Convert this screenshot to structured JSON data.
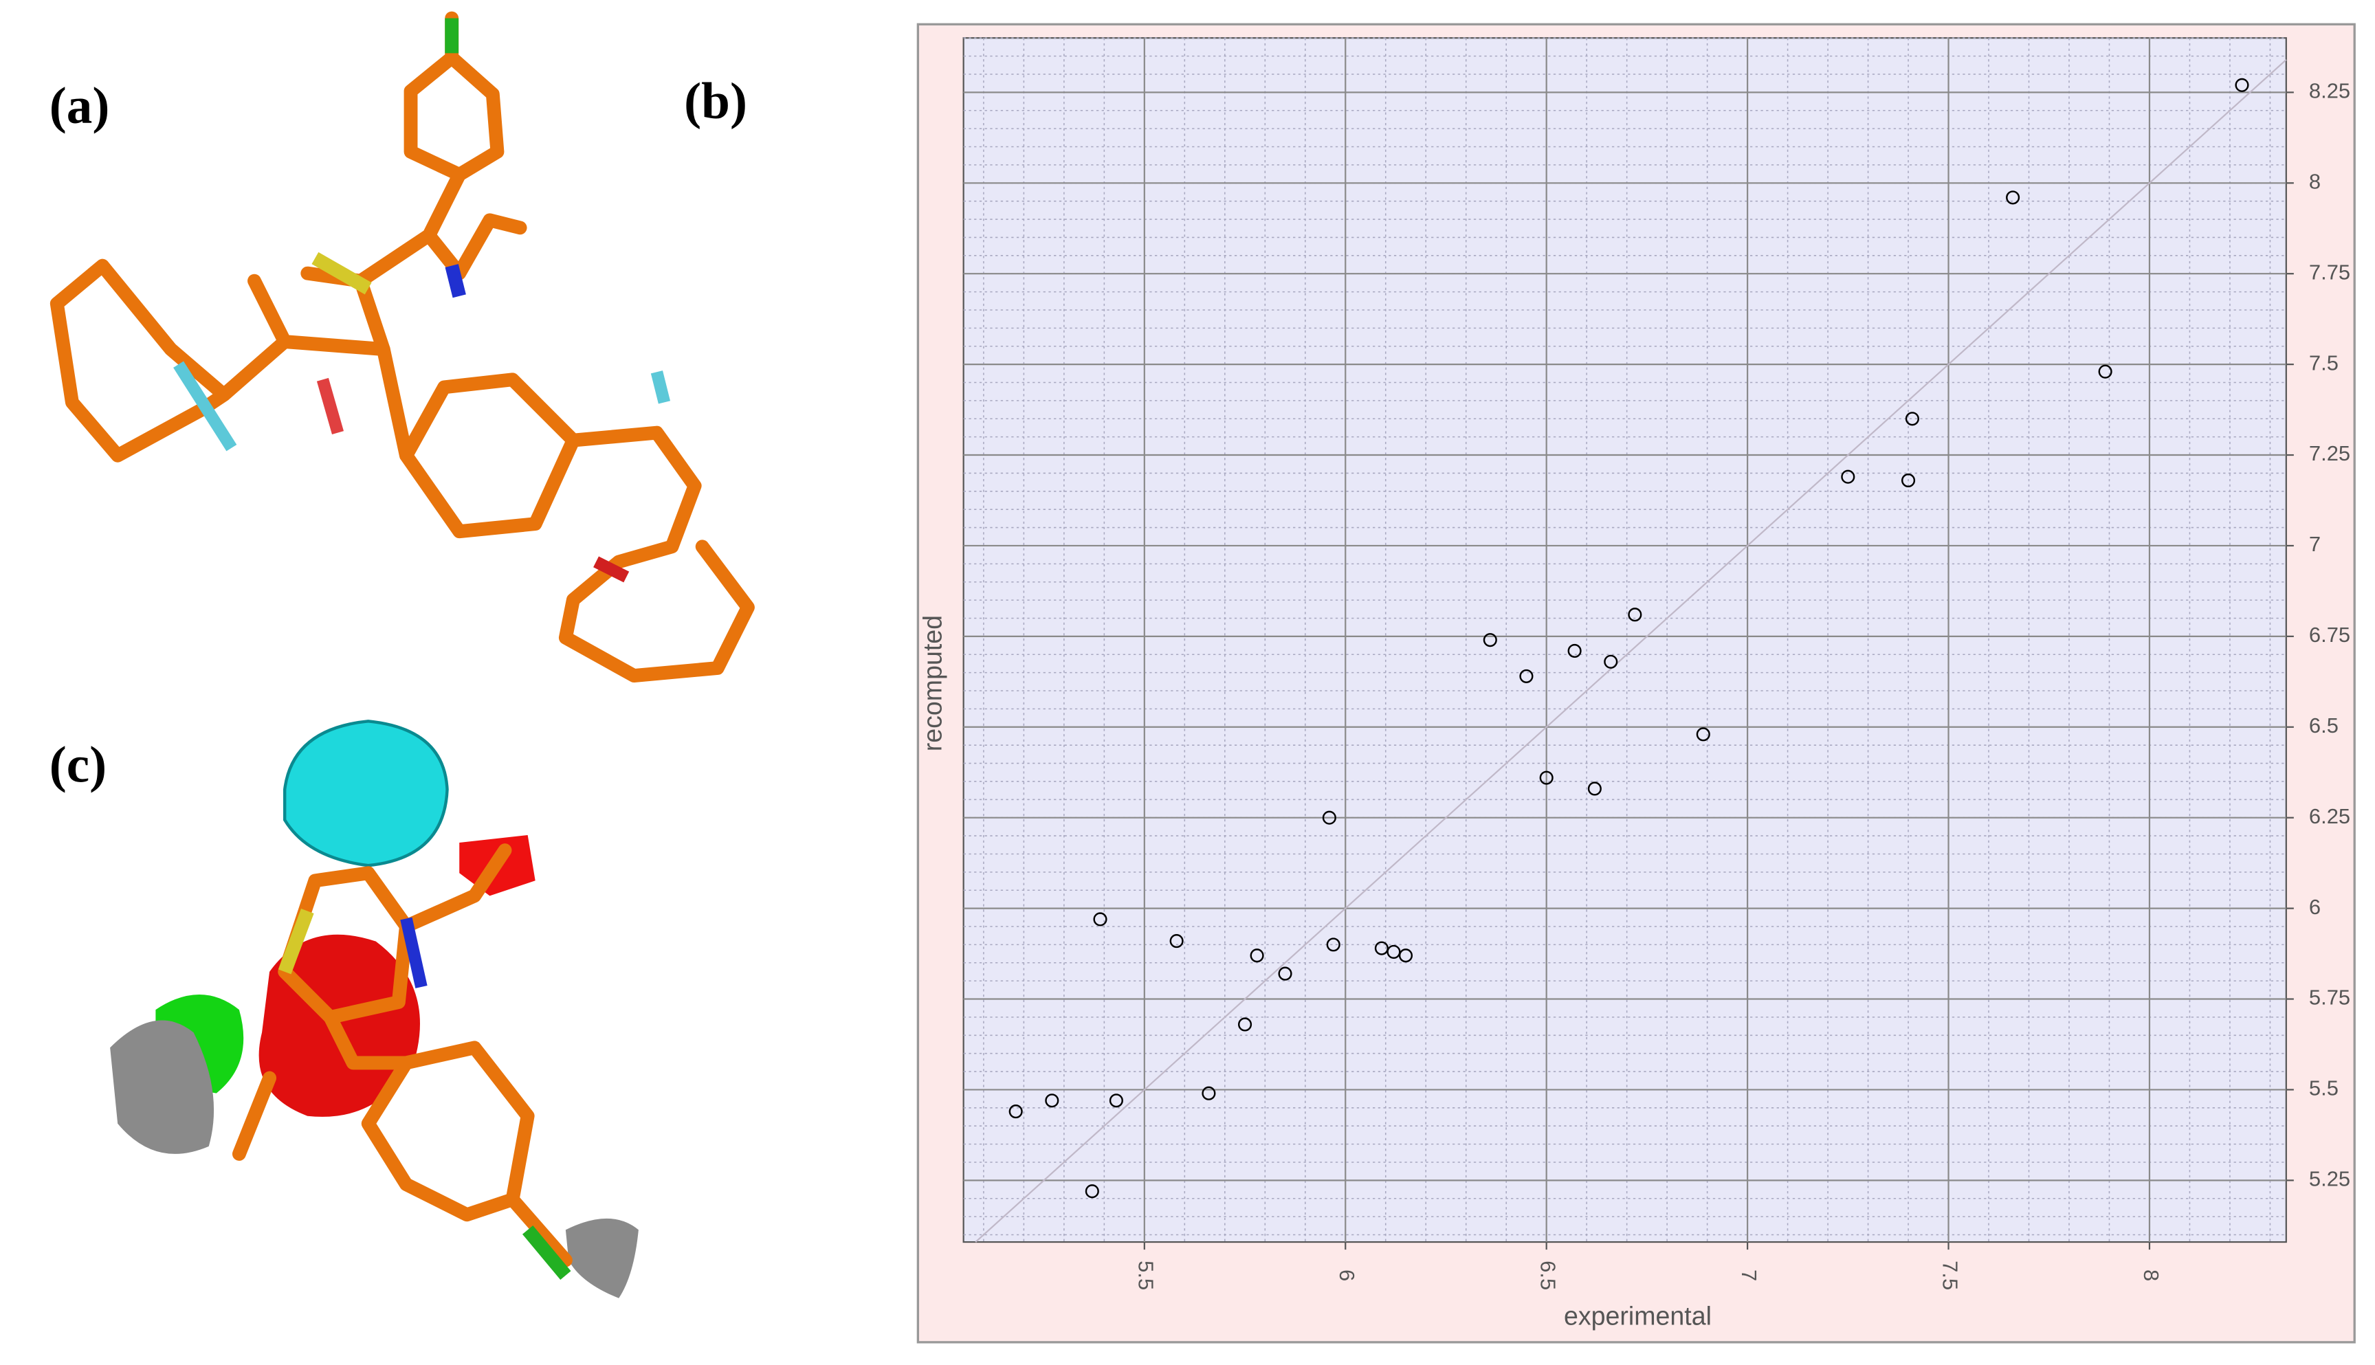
{
  "panel_labels": [
    "(a)",
    "(b)",
    "(c)"
  ],
  "chart_data": {
    "type": "scatter",
    "xlabel": "experimental",
    "ylabel": "recomputed",
    "x": [
      8.23,
      7.66,
      7.89,
      7.41,
      7.25,
      7.4,
      6.72,
      6.36,
      6.57,
      6.66,
      6.45,
      6.89,
      6.5,
      6.62,
      5.96,
      5.39,
      5.58,
      5.97,
      5.78,
      6.09,
      6.12,
      6.15,
      5.85,
      5.75,
      5.66,
      5.43,
      5.27,
      5.18,
      5.37
    ],
    "values": [
      8.27,
      7.96,
      7.48,
      7.35,
      7.19,
      7.18,
      6.81,
      6.74,
      6.71,
      6.68,
      6.64,
      6.48,
      6.36,
      6.33,
      6.25,
      5.97,
      5.91,
      5.9,
      5.87,
      5.89,
      5.88,
      5.87,
      5.82,
      5.68,
      5.49,
      5.47,
      5.47,
      5.44,
      5.22
    ],
    "xlim": [
      5.05,
      8.34
    ],
    "ylim": [
      5.08,
      8.4
    ],
    "xticks": [
      5.5,
      6,
      6.5,
      7,
      7.5,
      8
    ],
    "yticks": [
      5.25,
      5.5,
      5.75,
      6,
      6.25,
      6.5,
      6.75,
      7,
      7.25,
      7.5,
      7.75,
      8,
      8.25
    ],
    "grid": true,
    "minor_grid": true,
    "diagonal": true,
    "marker_color": "#000000",
    "background": "#e8e8f8",
    "frame_color": "#fde9e9"
  }
}
